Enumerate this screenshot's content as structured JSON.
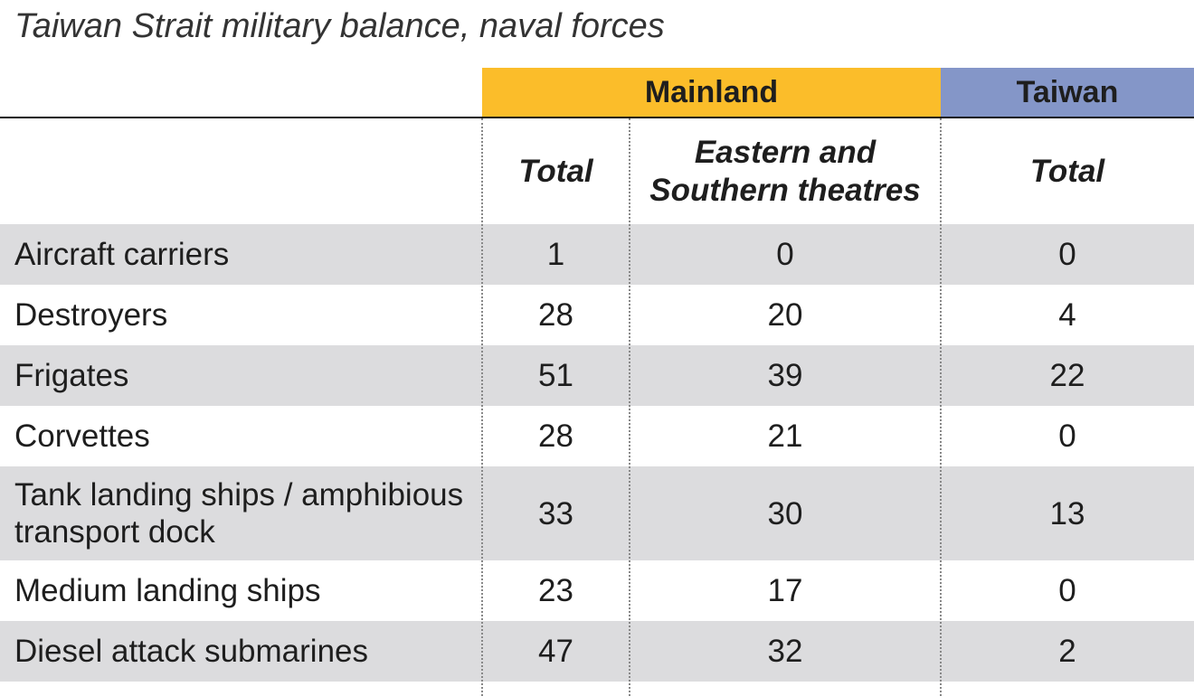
{
  "title": "Taiwan Strait military balance, naval forces",
  "header": {
    "groups": [
      "Mainland",
      "Taiwan"
    ],
    "columns": [
      "Total",
      "Eastern and Southern theatres",
      "Total"
    ]
  },
  "rows": [
    {
      "label": "Aircraft carriers",
      "values": [
        1,
        0,
        0
      ]
    },
    {
      "label": "Destroyers",
      "values": [
        28,
        20,
        4
      ]
    },
    {
      "label": "Frigates",
      "values": [
        51,
        39,
        22
      ]
    },
    {
      "label": "Corvettes",
      "values": [
        28,
        21,
        0
      ]
    },
    {
      "label": "Tank landing ships / amphibious transport dock",
      "values": [
        33,
        30,
        13
      ]
    },
    {
      "label": "Medium landing ships",
      "values": [
        23,
        17,
        0
      ]
    },
    {
      "label": "Diesel attack submarines",
      "values": [
        47,
        32,
        2
      ]
    }
  ]
}
